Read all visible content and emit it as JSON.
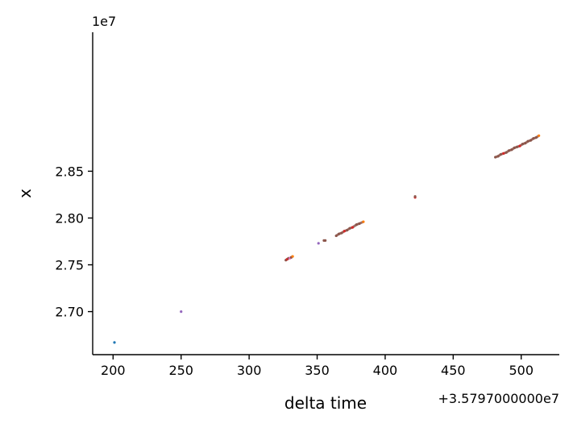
{
  "chart_data": {
    "type": "scatter",
    "title": "",
    "xlabel": "delta time",
    "ylabel": "x",
    "x_offset_label": "+3.5797000000e7",
    "y_offset_label": "1e7",
    "xlim": [
      185,
      528
    ],
    "ylim": [
      2.654,
      2.9985
    ],
    "xticks": [
      200,
      250,
      300,
      350,
      400,
      450,
      500
    ],
    "xtick_labels": [
      "200",
      "250",
      "300",
      "350",
      "400",
      "450",
      "500"
    ],
    "yticks": [
      2.7,
      2.75,
      2.8,
      2.85
    ],
    "ytick_labels": [
      "2.70",
      "2.75",
      "2.80",
      "2.85"
    ],
    "grid": false,
    "legend": "none",
    "colors": [
      "#1f77b4",
      "#8c564b",
      "#d62728",
      "#ff7f0e",
      "#9467bd",
      "#e377c2"
    ],
    "points": [
      {
        "x": 201,
        "y": 2.667,
        "c": "#1f77b4"
      },
      {
        "x": 250,
        "y": 2.7,
        "c": "#9467bd"
      },
      {
        "x": 327,
        "y": 2.755,
        "c": "#8c564b"
      },
      {
        "x": 328,
        "y": 2.756,
        "c": "#d62728"
      },
      {
        "x": 329,
        "y": 2.757,
        "c": "#8c564b"
      },
      {
        "x": 330,
        "y": 2.757,
        "c": "#e377c2"
      },
      {
        "x": 331,
        "y": 2.758,
        "c": "#8c564b"
      },
      {
        "x": 332,
        "y": 2.759,
        "c": "#ff7f0e"
      },
      {
        "x": 351,
        "y": 2.773,
        "c": "#9467bd"
      },
      {
        "x": 355,
        "y": 2.776,
        "c": "#8c564b"
      },
      {
        "x": 356,
        "y": 2.776,
        "c": "#8c564b"
      },
      {
        "x": 364,
        "y": 2.781,
        "c": "#8c564b"
      },
      {
        "x": 366,
        "y": 2.783,
        "c": "#8c564b"
      },
      {
        "x": 368,
        "y": 2.784,
        "c": "#8c564b"
      },
      {
        "x": 370,
        "y": 2.786,
        "c": "#d62728"
      },
      {
        "x": 372,
        "y": 2.787,
        "c": "#8c564b"
      },
      {
        "x": 374,
        "y": 2.789,
        "c": "#8c564b"
      },
      {
        "x": 376,
        "y": 2.79,
        "c": "#d62728"
      },
      {
        "x": 379,
        "y": 2.793,
        "c": "#8c564b"
      },
      {
        "x": 381,
        "y": 2.794,
        "c": "#8c564b"
      },
      {
        "x": 384,
        "y": 2.796,
        "c": "#ff7f0e"
      },
      {
        "x": 422,
        "y": 2.822,
        "c": "#d62728"
      },
      {
        "x": 422,
        "y": 2.823,
        "c": "#8c564b"
      },
      {
        "x": 481,
        "y": 2.865,
        "c": "#8c564b"
      },
      {
        "x": 483,
        "y": 2.866,
        "c": "#8c564b"
      },
      {
        "x": 485,
        "y": 2.868,
        "c": "#8c564b"
      },
      {
        "x": 487,
        "y": 2.869,
        "c": "#d62728"
      },
      {
        "x": 489,
        "y": 2.87,
        "c": "#8c564b"
      },
      {
        "x": 491,
        "y": 2.872,
        "c": "#8c564b"
      },
      {
        "x": 493,
        "y": 2.873,
        "c": "#8c564b"
      },
      {
        "x": 495,
        "y": 2.875,
        "c": "#8c564b"
      },
      {
        "x": 497,
        "y": 2.876,
        "c": "#8c564b"
      },
      {
        "x": 499,
        "y": 2.877,
        "c": "#d62728"
      },
      {
        "x": 501,
        "y": 2.879,
        "c": "#8c564b"
      },
      {
        "x": 503,
        "y": 2.88,
        "c": "#8c564b"
      },
      {
        "x": 505,
        "y": 2.882,
        "c": "#8c564b"
      },
      {
        "x": 507,
        "y": 2.883,
        "c": "#8c564b"
      },
      {
        "x": 509,
        "y": 2.885,
        "c": "#8c564b"
      },
      {
        "x": 511,
        "y": 2.886,
        "c": "#8c564b"
      },
      {
        "x": 513,
        "y": 2.888,
        "c": "#ff7f0e"
      }
    ]
  }
}
